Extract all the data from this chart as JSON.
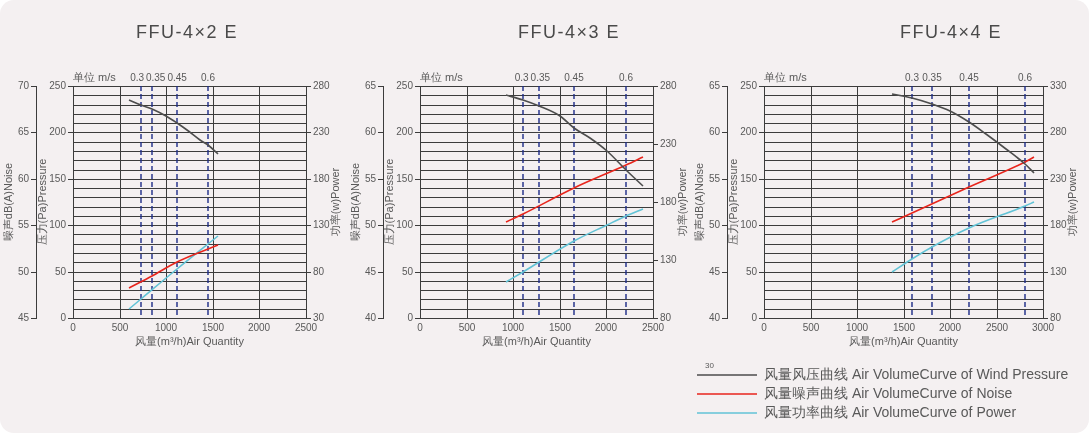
{
  "chart_data": [
    {
      "type": "line",
      "title": "FFU-4×2 E",
      "xlabel": "风量(m³/h)Air Quantity",
      "ylabel": "压力(Pa)Pressure",
      "y2label": "功率(w)Power",
      "y3label": "噪声dB(A)Noise",
      "annotations": [
        "单位 m/s",
        "0.3",
        "0.35",
        "0.45",
        "0.6"
      ],
      "xlim": [
        0,
        2500
      ],
      "xticks": [
        0,
        500,
        1000,
        1500,
        2000,
        2500
      ],
      "ylim": [
        0,
        250
      ],
      "yticks": [
        0,
        {
          "value": 10,
          "label": null
        },
        {
          "value": 20,
          "label": null
        },
        {
          "value": 30,
          "label": null
        },
        {
          "value": 40,
          "label": null
        },
        50,
        {
          "value": 60,
          "label": null
        },
        {
          "value": 70,
          "label": null
        },
        {
          "value": 80,
          "label": null
        },
        {
          "value": 90,
          "label": null
        },
        100,
        {
          "value": 110,
          "label": null
        },
        {
          "value": 120,
          "label": null
        },
        {
          "value": 130,
          "label": null
        },
        {
          "value": 140,
          "label": null
        },
        150,
        {
          "value": 160,
          "label": null
        },
        {
          "value": 170,
          "label": null
        },
        {
          "value": 180,
          "label": null
        },
        {
          "value": 190,
          "label": null
        },
        200,
        {
          "value": 210,
          "label": null
        },
        {
          "value": 220,
          "label": null
        },
        {
          "value": 230,
          "label": null
        },
        {
          "value": 240,
          "label": null
        },
        250
      ],
      "y2lim": [
        30,
        280
      ],
      "y2ticks": [
        30,
        80,
        130,
        180,
        230,
        280
      ],
      "y3lim": [
        45,
        70
      ],
      "y3ticks": [
        45,
        50,
        55,
        60,
        65,
        70
      ],
      "grid": true,
      "ref_lines": [
        {
          "axis": "x",
          "value": 725,
          "color": "#1c2a87",
          "line_style": "dashed"
        },
        {
          "axis": "x",
          "value": 845,
          "color": "#1c2a87",
          "line_style": "dashed"
        },
        {
          "axis": "x",
          "value": 1120,
          "color": "#1c2a87",
          "line_style": "dashed"
        },
        {
          "axis": "x",
          "value": 1445,
          "color": "#1c2a87",
          "line_style": "dashed"
        }
      ],
      "series": [
        {
          "color": "#4d4d4d",
          "x": [
            600,
            725,
            845,
            1000,
            1120,
            1220,
            1365,
            1445,
            1560
          ],
          "values": [
            235,
            230,
            225,
            218,
            210,
            203,
            192,
            186,
            177
          ]
        },
        {
          "color": "#e8251c",
          "axis": "y3",
          "x": [
            600,
            845,
            1120,
            1560
          ],
          "values": [
            48.2,
            49.5,
            51.0,
            52.9
          ]
        },
        {
          "color": "#62c3d6",
          "axis": "y2",
          "x": [
            600,
            725,
            1120,
            1560
          ],
          "values": [
            40,
            50,
            83,
            118
          ]
        }
      ]
    },
    {
      "type": "line",
      "title": "FFU-4×3 E",
      "xlabel": "风量(m³/h)Air Quantity",
      "ylabel": "压力(Pa)Pressure",
      "y2label": "功率(w)Power",
      "y3label": "噪声dB(A)Noise",
      "annotations": [
        "单位 m/s",
        "0.3",
        "0.35",
        "0.45",
        "0.6"
      ],
      "xlim": [
        0,
        2500
      ],
      "xticks": [
        0,
        500,
        1000,
        1500,
        2000,
        2500
      ],
      "ylim": [
        0,
        250
      ],
      "yticks": [
        0,
        {
          "value": 10,
          "label": null
        },
        {
          "value": 20,
          "label": null
        },
        {
          "value": 30,
          "label": null
        },
        {
          "value": 40,
          "label": null
        },
        50,
        {
          "value": 60,
          "label": null
        },
        {
          "value": 70,
          "label": null
        },
        {
          "value": 80,
          "label": null
        },
        {
          "value": 90,
          "label": null
        },
        100,
        {
          "value": 110,
          "label": null
        },
        {
          "value": 120,
          "label": null
        },
        {
          "value": 130,
          "label": null
        },
        {
          "value": 140,
          "label": null
        },
        150,
        {
          "value": 160,
          "label": null
        },
        {
          "value": 170,
          "label": null
        },
        {
          "value": 180,
          "label": null
        },
        {
          "value": 190,
          "label": null
        },
        200,
        {
          "value": 210,
          "label": null
        },
        {
          "value": 220,
          "label": null
        },
        {
          "value": 230,
          "label": null
        },
        {
          "value": 240,
          "label": null
        },
        250
      ],
      "y2lim": [
        80,
        280
      ],
      "y2ticks": [
        80,
        130,
        180,
        230,
        280
      ],
      "y3lim": [
        40,
        65
      ],
      "y3ticks": [
        40,
        45,
        50,
        55,
        60,
        65
      ],
      "grid": true,
      "ref_lines": [
        {
          "axis": "x",
          "value": 1100,
          "color": "#1c2a87",
          "line_style": "dashed"
        },
        {
          "axis": "x",
          "value": 1280,
          "color": "#1c2a87",
          "line_style": "dashed"
        },
        {
          "axis": "x",
          "value": 1650,
          "color": "#1c2a87",
          "line_style": "dashed"
        },
        {
          "axis": "x",
          "value": 2205,
          "color": "#1c2a87",
          "line_style": "dashed"
        }
      ],
      "series": [
        {
          "color": "#4d4d4d",
          "x": [
            920,
            1100,
            1280,
            1500,
            1650,
            1825,
            2005,
            2205,
            2390
          ],
          "values": [
            240,
            235,
            228,
            218,
            205,
            194,
            180,
            159,
            142
          ]
        },
        {
          "color": "#e8251c",
          "axis": "y3",
          "x": [
            920,
            1100,
            1650,
            2205,
            2390
          ],
          "values": [
            50.3,
            51.2,
            54.0,
            56.5,
            57.4
          ]
        },
        {
          "color": "#62c3d6",
          "axis": "y2",
          "x": [
            920,
            1100,
            1650,
            2005,
            2205,
            2390
          ],
          "values": [
            111,
            120,
            146,
            160,
            168,
            174
          ]
        }
      ]
    },
    {
      "type": "line",
      "title": "FFU-4×4 E",
      "xlabel": "风量(m³/h)Air Quantity",
      "ylabel": "压力(Pa)Pressure",
      "y2label": "功率(w)Power",
      "y3label": "噪声dB(A)Noise",
      "annotations": [
        "单位 m/s",
        "0.3",
        "0.35",
        "0.45",
        "0.6",
        "30"
      ],
      "xlim": [
        0,
        3000
      ],
      "xticks": [
        0,
        500,
        1000,
        1500,
        2000,
        2500,
        3000
      ],
      "ylim": [
        0,
        250
      ],
      "yticks": [
        0,
        {
          "value": 10,
          "label": null
        },
        {
          "value": 20,
          "label": null
        },
        {
          "value": 30,
          "label": null
        },
        {
          "value": 40,
          "label": null
        },
        50,
        {
          "value": 60,
          "label": null
        },
        {
          "value": 70,
          "label": null
        },
        {
          "value": 80,
          "label": null
        },
        {
          "value": 90,
          "label": null
        },
        100,
        {
          "value": 110,
          "label": null
        },
        {
          "value": 120,
          "label": null
        },
        {
          "value": 130,
          "label": null
        },
        {
          "value": 140,
          "label": null
        },
        150,
        {
          "value": 160,
          "label": null
        },
        {
          "value": 170,
          "label": null
        },
        {
          "value": 180,
          "label": null
        },
        {
          "value": 190,
          "label": null
        },
        200,
        {
          "value": 210,
          "label": null
        },
        {
          "value": 220,
          "label": null
        },
        {
          "value": 230,
          "label": null
        },
        {
          "value": 240,
          "label": null
        },
        250
      ],
      "y2lim": [
        80,
        330
      ],
      "y2ticks": [
        80,
        130,
        180,
        230,
        280,
        330
      ],
      "y3lim": [
        40,
        65
      ],
      "y3ticks": [
        40,
        45,
        50,
        55,
        60,
        65
      ],
      "grid": true,
      "legend": "bottom",
      "ref_lines": [
        {
          "axis": "x",
          "value": 1590,
          "color": "#1c2a87",
          "line_style": "dashed"
        },
        {
          "axis": "x",
          "value": 1805,
          "color": "#1c2a87",
          "line_style": "dashed"
        },
        {
          "axis": "x",
          "value": 2205,
          "color": "#1c2a87",
          "line_style": "dashed"
        },
        {
          "axis": "x",
          "value": 2805,
          "color": "#1c2a87",
          "line_style": "dashed"
        }
      ],
      "series": [
        {
          "name": "风量风压曲线 Air VolumeCurve of Wind Pressure",
          "color": "#4d4d4d",
          "x": [
            1375,
            1590,
            1805,
            2000,
            2205,
            2390,
            2605,
            2805,
            2900
          ],
          "values": [
            241,
            237,
            231,
            223,
            211,
            198,
            182,
            166,
            156
          ]
        },
        {
          "name": "风量噪声曲线 Air VolumeCurve of Noise",
          "color": "#e8251c",
          "axis": "y3",
          "x": [
            1375,
            1590,
            2205,
            2805,
            2900
          ],
          "values": [
            50.3,
            51.3,
            54.1,
            56.8,
            57.3
          ]
        },
        {
          "name": "风量功率曲线 Air VolumeCurve of Power",
          "color": "#62c3d6",
          "axis": "y2",
          "x": [
            1375,
            1590,
            1805,
            2205,
            2805,
            2900
          ],
          "values": [
            130,
            144,
            156,
            177,
            201,
            205
          ]
        }
      ]
    }
  ]
}
